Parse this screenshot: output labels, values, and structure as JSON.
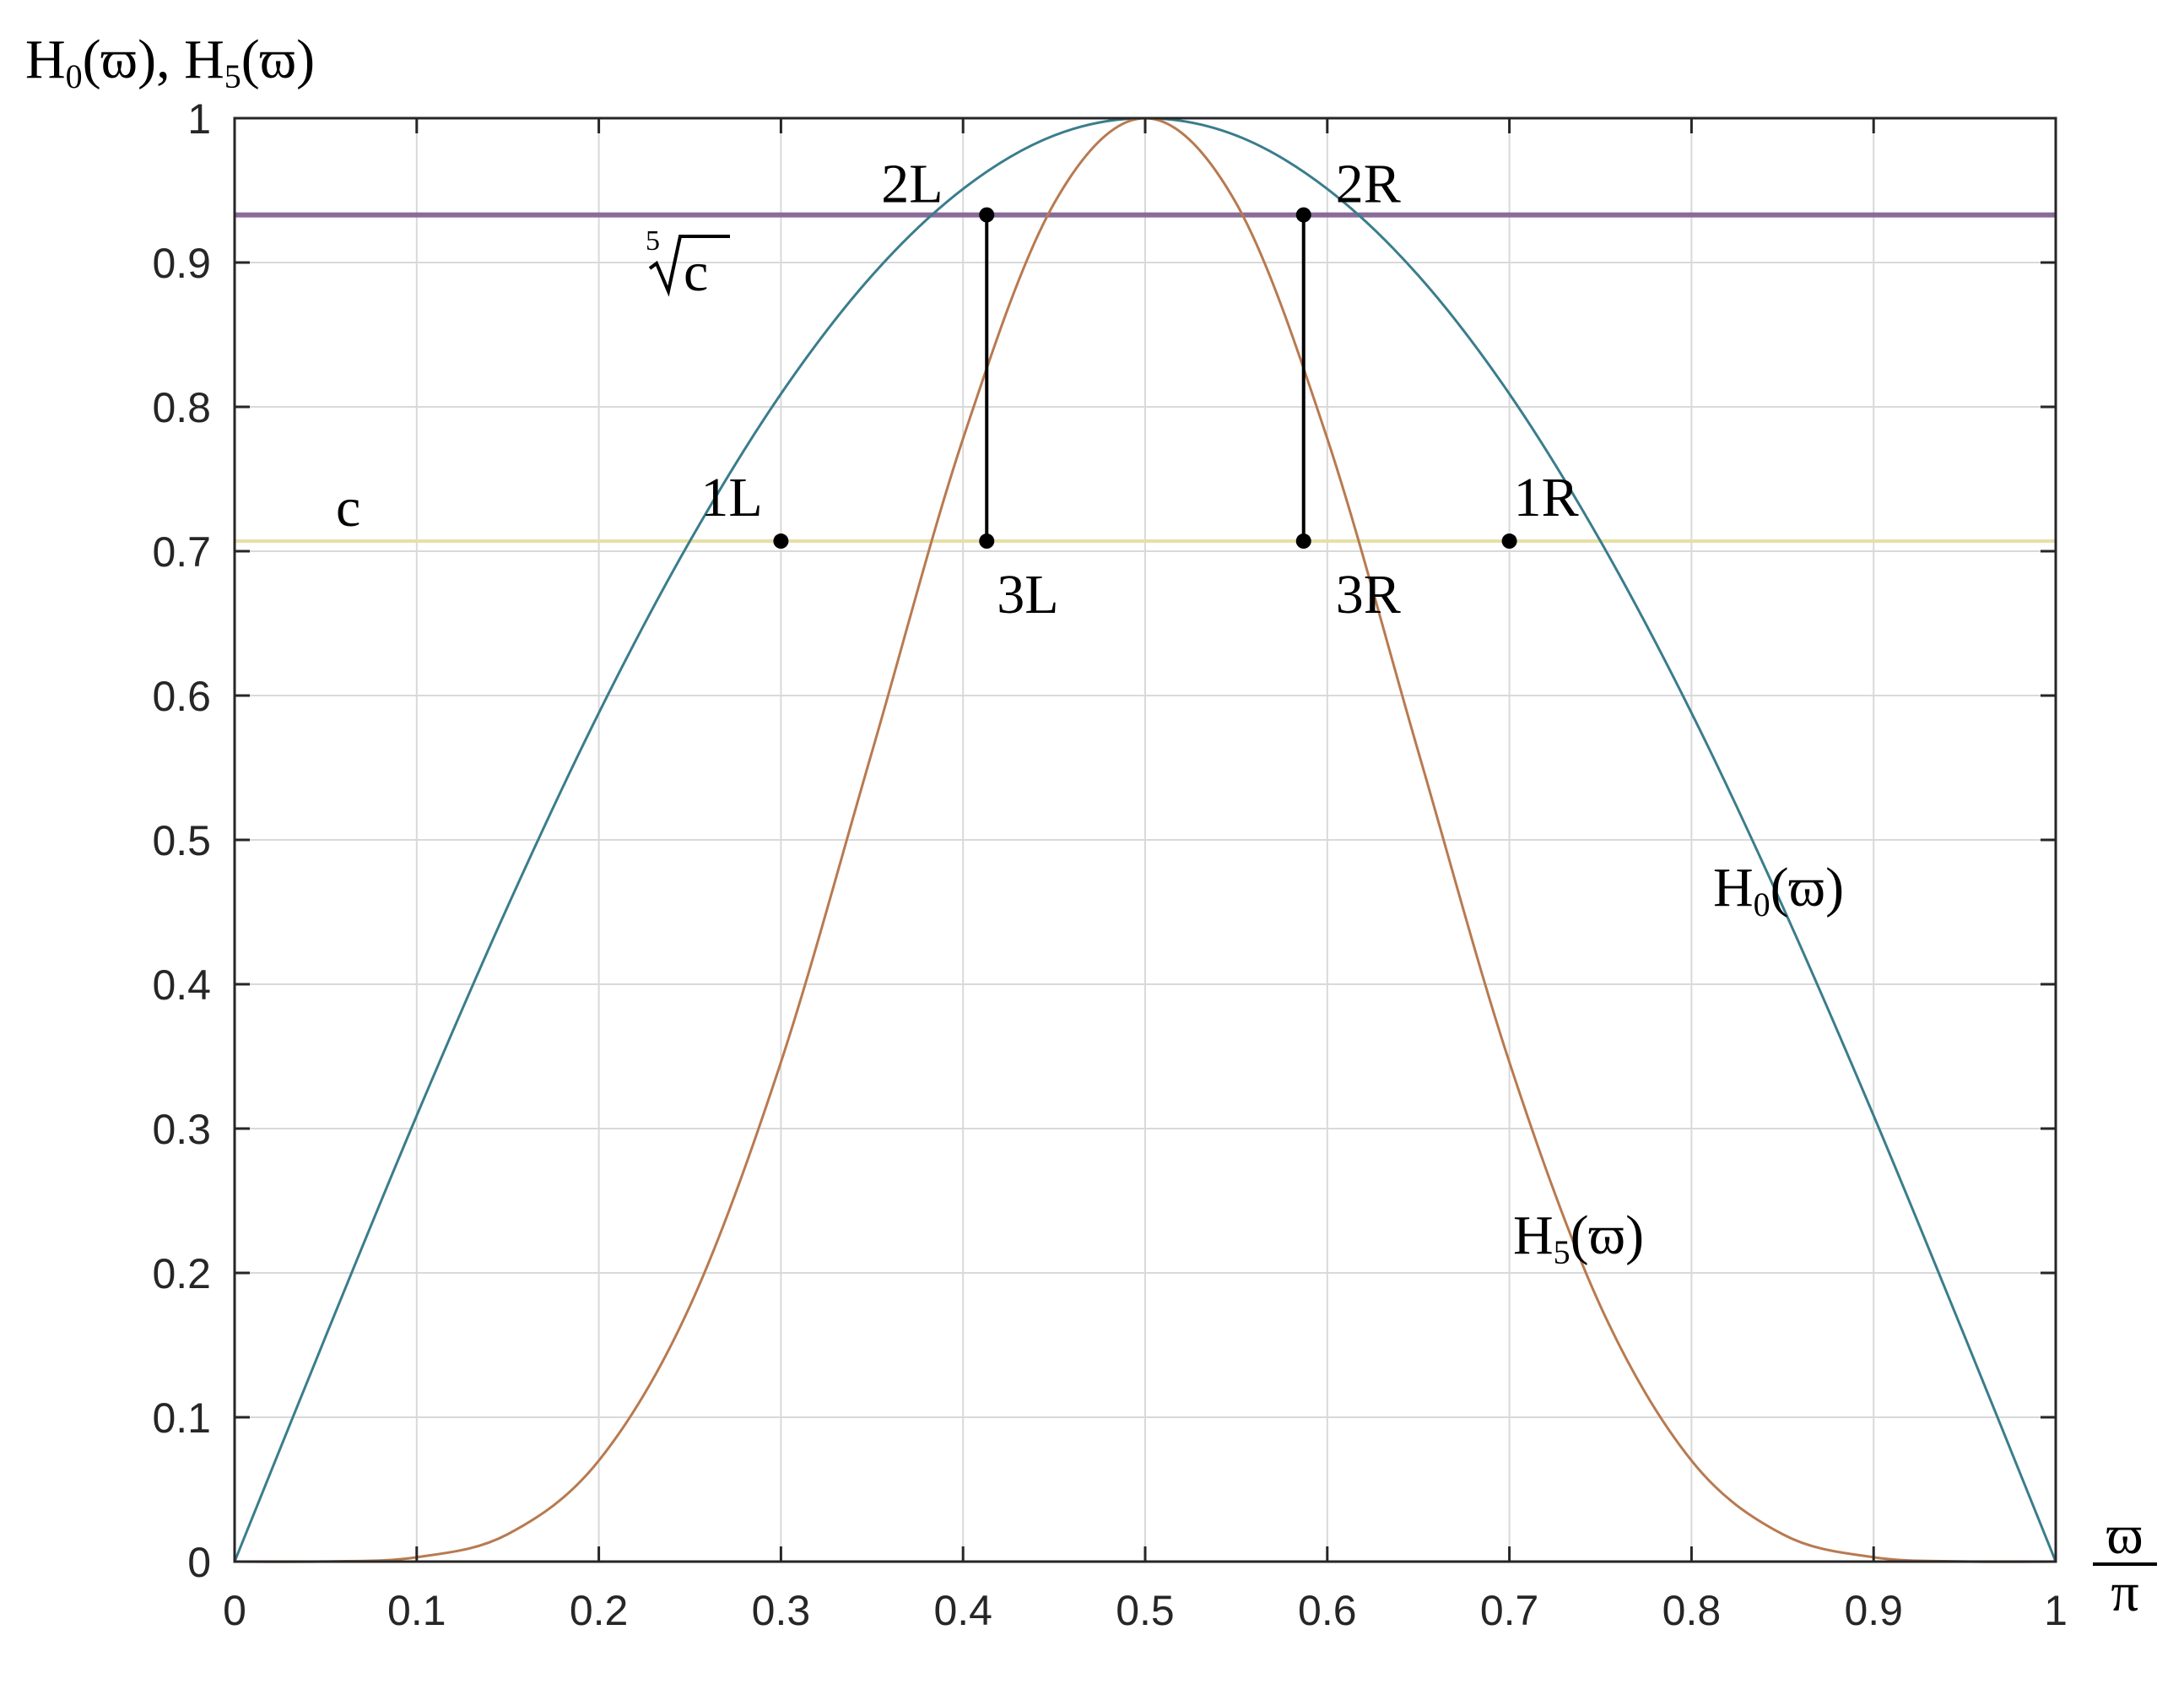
{
  "chart_data": {
    "type": "line",
    "ylabel": {
      "main": "H",
      "sub0": "0",
      "mid": "(ϖ), H",
      "sub5": "5",
      "end": "(ϖ)"
    },
    "xlabel": {
      "numerator": "ϖ",
      "denominator": "π"
    },
    "xlim": [
      0,
      1
    ],
    "ylim": [
      0,
      1
    ],
    "grid": true,
    "x_ticks": [
      "0",
      "0.1",
      "0.2",
      "0.3",
      "0.4",
      "0.5",
      "0.6",
      "0.7",
      "0.8",
      "0.9",
      "1"
    ],
    "y_ticks": [
      "0",
      "0.1",
      "0.2",
      "0.3",
      "0.4",
      "0.5",
      "0.6",
      "0.7",
      "0.8",
      "0.9",
      "1"
    ],
    "series": [
      {
        "name": "H0(ϖ)",
        "label": {
          "main": "H",
          "sub": "0",
          "end": "(ϖ)"
        },
        "color": "#3a7d8c",
        "x": [
          0,
          0.05,
          0.1,
          0.15,
          0.2,
          0.25,
          0.3,
          0.35,
          0.4,
          0.45,
          0.5,
          0.55,
          0.6,
          0.65,
          0.7,
          0.75,
          0.8,
          0.85,
          0.9,
          0.95,
          1
        ],
        "values": [
          0,
          0.156,
          0.309,
          0.454,
          0.588,
          0.707,
          0.809,
          0.891,
          0.951,
          0.988,
          1,
          0.988,
          0.951,
          0.891,
          0.809,
          0.707,
          0.588,
          0.454,
          0.309,
          0.156,
          0
        ]
      },
      {
        "name": "H5(ϖ)",
        "label": {
          "main": "H",
          "sub": "5",
          "end": "(ϖ)"
        },
        "color": "#b87a50",
        "x": [
          0,
          0.05,
          0.1,
          0.15,
          0.2,
          0.25,
          0.3,
          0.35,
          0.4,
          0.45,
          0.5,
          0.55,
          0.6,
          0.65,
          0.7,
          0.75,
          0.8,
          0.85,
          0.9,
          0.95,
          1
        ],
        "values": [
          0,
          0.0001,
          0.003,
          0.019,
          0.07,
          0.177,
          0.346,
          0.561,
          0.778,
          0.941,
          1,
          0.941,
          0.778,
          0.561,
          0.346,
          0.177,
          0.07,
          0.019,
          0.003,
          0.0001,
          0
        ]
      }
    ],
    "hlines": [
      {
        "name": "c",
        "label": "c",
        "y": 0.707,
        "color": "#e6e0a6"
      },
      {
        "name": "fifth root c",
        "label": "c",
        "root_index": "5",
        "y": 0.933,
        "color": "#8a6b9a"
      }
    ],
    "points": [
      {
        "label": "1L",
        "x": 0.3,
        "y": 0.707
      },
      {
        "label": "1R",
        "x": 0.7,
        "y": 0.707
      },
      {
        "label": "2L",
        "x": 0.413,
        "y": 0.933
      },
      {
        "label": "2R",
        "x": 0.587,
        "y": 0.933
      },
      {
        "label": "3L",
        "x": 0.413,
        "y": 0.707
      },
      {
        "label": "3R",
        "x": 0.587,
        "y": 0.707
      }
    ],
    "vsegments": [
      {
        "x": 0.413,
        "y_from": 0.707,
        "y_to": 0.933
      },
      {
        "x": 0.587,
        "y_from": 0.707,
        "y_to": 0.933
      }
    ]
  }
}
